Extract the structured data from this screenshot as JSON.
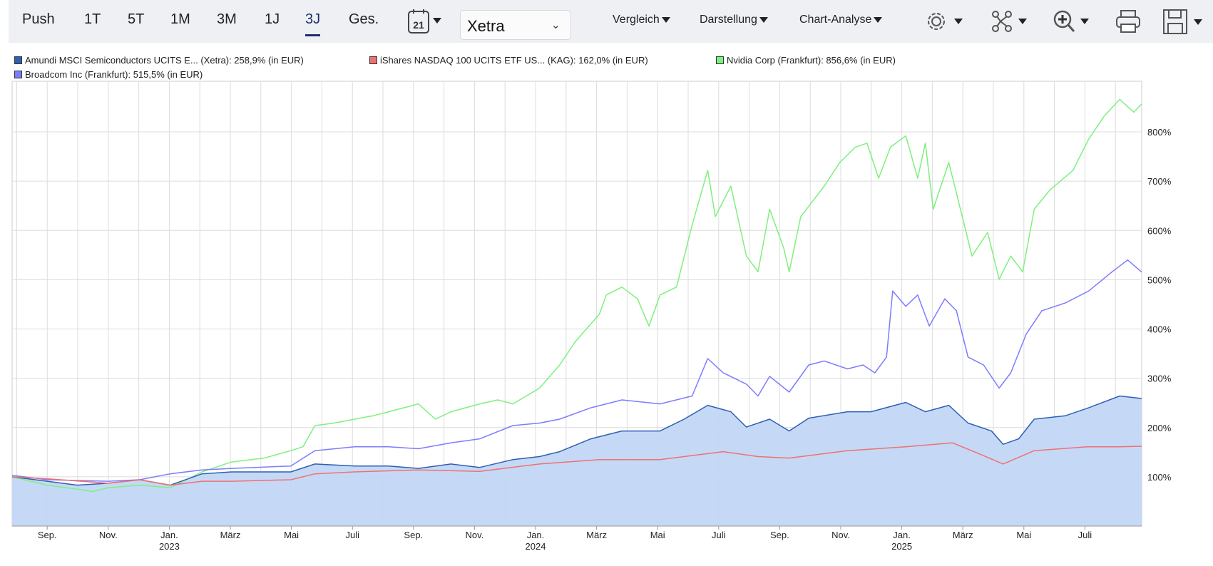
{
  "toolbar": {
    "periods": [
      "Push",
      "1T",
      "5T",
      "1M",
      "3M",
      "1J",
      "3J",
      "Ges."
    ],
    "active_period": "3J",
    "calendar_day": "21",
    "exchange": "Xetra",
    "menus": [
      "Vergleich",
      "Darstellung",
      "Chart-Analyse"
    ],
    "icons": [
      "settings-icon",
      "indicators-icon",
      "zoom-icon",
      "print-icon",
      "save-icon"
    ]
  },
  "legend": [
    {
      "label": "Amundi MSCI Semiconductors UCITS E... (Xetra): 258,9% (in EUR)",
      "color": "#2f5fb3"
    },
    {
      "label": "iShares NASDAQ 100 UCITS ETF US... (KAG): 162,0% (in EUR)",
      "color": "#f07070"
    },
    {
      "label": "Nvidia Corp (Frankfurt): 856,6% (in EUR)",
      "color": "#7ef07e"
    },
    {
      "label": "Broadcom Inc (Frankfurt): 515,5% (in EUR)",
      "color": "#7c7cff"
    }
  ],
  "chart_data": {
    "type": "line",
    "x_unit": "months since Sep 2022",
    "xlim": [
      -1.15,
      35.86
    ],
    "ylim": [
      0,
      900
    ],
    "yticks": [
      100,
      200,
      300,
      400,
      500,
      600,
      700,
      800
    ],
    "ytick_labels": [
      "100%",
      "200%",
      "300%",
      "400%",
      "500%",
      "600%",
      "700%",
      "800%"
    ],
    "xticks": [
      {
        "m": 0,
        "label": "Sep."
      },
      {
        "m": 2,
        "label": "Nov."
      },
      {
        "m": 4,
        "label": "Jan.",
        "year": "2023"
      },
      {
        "m": 6,
        "label": "März"
      },
      {
        "m": 8,
        "label": "Mai"
      },
      {
        "m": 10,
        "label": "Juli"
      },
      {
        "m": 12,
        "label": "Sep."
      },
      {
        "m": 14,
        "label": "Nov."
      },
      {
        "m": 16,
        "label": "Jan.",
        "year": "2024"
      },
      {
        "m": 18,
        "label": "März"
      },
      {
        "m": 20,
        "label": "Mai"
      },
      {
        "m": 22,
        "label": "Juli"
      },
      {
        "m": 24,
        "label": "Sep."
      },
      {
        "m": 26,
        "label": "Nov."
      },
      {
        "m": 28,
        "label": "Jan.",
        "year": "2025"
      },
      {
        "m": 30,
        "label": "März"
      },
      {
        "m": 32,
        "label": "Mai"
      },
      {
        "m": 34,
        "label": "Juli"
      }
    ],
    "grid": true,
    "legend_position": "top-left",
    "series": [
      {
        "name": "Nvidia Corp (Frankfurt)",
        "color": "#7ef07e",
        "points": [
          [
            -1.15,
            100
          ],
          [
            0,
            83
          ],
          [
            0.99,
            75
          ],
          [
            1.5,
            70
          ],
          [
            1.99,
            78
          ],
          [
            3.03,
            83
          ],
          [
            4.03,
            78
          ],
          [
            4.56,
            94
          ],
          [
            5.07,
            110
          ],
          [
            6.04,
            130
          ],
          [
            7.11,
            138
          ],
          [
            7.98,
            153
          ],
          [
            8.38,
            161
          ],
          [
            8.77,
            204
          ],
          [
            9.4,
            209
          ],
          [
            10.07,
            217
          ],
          [
            10.68,
            224
          ],
          [
            11.19,
            232
          ],
          [
            12.16,
            248
          ],
          [
            12.72,
            217
          ],
          [
            13.23,
            232
          ],
          [
            14.17,
            248
          ],
          [
            14.76,
            256
          ],
          [
            15.26,
            248
          ],
          [
            16.13,
            280
          ],
          [
            16.79,
            327
          ],
          [
            17.3,
            374
          ],
          [
            18.09,
            430
          ],
          [
            18.32,
            469
          ],
          [
            18.83,
            485
          ],
          [
            19.34,
            461
          ],
          [
            19.72,
            406
          ],
          [
            20.08,
            469
          ],
          [
            20.62,
            485
          ],
          [
            21.13,
            611
          ],
          [
            21.64,
            722
          ],
          [
            21.89,
            628
          ],
          [
            22.4,
            690
          ],
          [
            22.91,
            548
          ],
          [
            23.29,
            516
          ],
          [
            23.67,
            643
          ],
          [
            24.13,
            564
          ],
          [
            24.31,
            516
          ],
          [
            24.69,
            628
          ],
          [
            25.46,
            690
          ],
          [
            25.97,
            738
          ],
          [
            26.48,
            769
          ],
          [
            26.86,
            777
          ],
          [
            27.24,
            706
          ],
          [
            27.63,
            769
          ],
          [
            28.13,
            792
          ],
          [
            28.52,
            706
          ],
          [
            28.77,
            777
          ],
          [
            29.03,
            643
          ],
          [
            29.54,
            738
          ],
          [
            30.05,
            611
          ],
          [
            30.3,
            548
          ],
          [
            30.81,
            596
          ],
          [
            31.19,
            501
          ],
          [
            31.57,
            548
          ],
          [
            31.96,
            516
          ],
          [
            32.34,
            643
          ],
          [
            32.85,
            682
          ],
          [
            33.61,
            722
          ],
          [
            34.12,
            785
          ],
          [
            34.63,
            832
          ],
          [
            35.14,
            866
          ],
          [
            35.6,
            840
          ],
          [
            35.86,
            856.6
          ]
        ]
      },
      {
        "name": "Broadcom Inc (Frankfurt)",
        "color": "#7c7cff",
        "points": [
          [
            -1.15,
            103
          ],
          [
            0,
            94
          ],
          [
            1.99,
            91
          ],
          [
            3.03,
            94
          ],
          [
            4.03,
            106
          ],
          [
            5.07,
            114
          ],
          [
            6.04,
            117
          ],
          [
            7.98,
            122
          ],
          [
            8.77,
            153
          ],
          [
            10.07,
            161
          ],
          [
            11.19,
            161
          ],
          [
            12.16,
            157
          ],
          [
            13.23,
            169
          ],
          [
            14.17,
            177
          ],
          [
            15.26,
            204
          ],
          [
            16.13,
            209
          ],
          [
            16.79,
            217
          ],
          [
            17.81,
            240
          ],
          [
            18.83,
            256
          ],
          [
            20.08,
            248
          ],
          [
            21.13,
            264
          ],
          [
            21.64,
            340
          ],
          [
            22.15,
            311
          ],
          [
            22.91,
            288
          ],
          [
            23.29,
            264
          ],
          [
            23.67,
            304
          ],
          [
            24.31,
            272
          ],
          [
            24.95,
            327
          ],
          [
            25.46,
            335
          ],
          [
            26.22,
            319
          ],
          [
            26.73,
            327
          ],
          [
            27.12,
            311
          ],
          [
            27.5,
            343
          ],
          [
            27.7,
            477
          ],
          [
            28.13,
            446
          ],
          [
            28.52,
            469
          ],
          [
            28.9,
            406
          ],
          [
            29.41,
            461
          ],
          [
            29.79,
            437
          ],
          [
            30.17,
            343
          ],
          [
            30.68,
            327
          ],
          [
            31.19,
            280
          ],
          [
            31.57,
            311
          ],
          [
            32.08,
            390
          ],
          [
            32.59,
            437
          ],
          [
            33.36,
            453
          ],
          [
            34.12,
            477
          ],
          [
            34.89,
            516
          ],
          [
            35.4,
            540
          ],
          [
            35.86,
            515.5
          ]
        ]
      },
      {
        "name": "Amundi MSCI Semiconductors UCITS E... (Xetra)",
        "color": "#2f5fb3",
        "area": "#c2d7f5",
        "points": [
          [
            -1.15,
            100
          ],
          [
            0,
            91
          ],
          [
            0.99,
            83
          ],
          [
            1.99,
            87
          ],
          [
            3.03,
            94
          ],
          [
            4.03,
            83
          ],
          [
            5.07,
            106
          ],
          [
            6.04,
            110
          ],
          [
            7.98,
            110
          ],
          [
            8.77,
            126
          ],
          [
            10.07,
            122
          ],
          [
            11.19,
            122
          ],
          [
            12.16,
            117
          ],
          [
            13.23,
            126
          ],
          [
            14.17,
            119
          ],
          [
            15.26,
            135
          ],
          [
            16.13,
            141
          ],
          [
            16.79,
            151
          ],
          [
            17.81,
            177
          ],
          [
            18.83,
            193
          ],
          [
            20.08,
            193
          ],
          [
            20.87,
            217
          ],
          [
            21.64,
            245
          ],
          [
            22.4,
            232
          ],
          [
            22.91,
            201
          ],
          [
            23.67,
            217
          ],
          [
            24.31,
            193
          ],
          [
            24.95,
            219
          ],
          [
            26.22,
            232
          ],
          [
            26.99,
            232
          ],
          [
            28.13,
            251
          ],
          [
            28.77,
            232
          ],
          [
            29.54,
            245
          ],
          [
            30.17,
            209
          ],
          [
            30.94,
            193
          ],
          [
            31.32,
            166
          ],
          [
            31.83,
            177
          ],
          [
            32.34,
            217
          ],
          [
            33.36,
            224
          ],
          [
            34.12,
            240
          ],
          [
            35.14,
            264
          ],
          [
            35.86,
            258.9
          ]
        ]
      },
      {
        "name": "iShares NASDAQ 100 UCITS ETF US... (KAG)",
        "color": "#f07070",
        "points": [
          [
            -1.15,
            100
          ],
          [
            0,
            96
          ],
          [
            1.99,
            87
          ],
          [
            3.03,
            94
          ],
          [
            4.03,
            83
          ],
          [
            5.07,
            91
          ],
          [
            6.04,
            91
          ],
          [
            7.98,
            94
          ],
          [
            8.77,
            106
          ],
          [
            10.07,
            110
          ],
          [
            12.16,
            114
          ],
          [
            14.17,
            111
          ],
          [
            16.13,
            126
          ],
          [
            18.09,
            135
          ],
          [
            20.08,
            135
          ],
          [
            22.15,
            151
          ],
          [
            23.29,
            141
          ],
          [
            24.31,
            138
          ],
          [
            26.22,
            153
          ],
          [
            28.13,
            161
          ],
          [
            29.66,
            169
          ],
          [
            30.56,
            146
          ],
          [
            31.32,
            126
          ],
          [
            32.34,
            153
          ],
          [
            34.12,
            161
          ],
          [
            35.14,
            161
          ],
          [
            35.86,
            162
          ]
        ]
      }
    ]
  }
}
